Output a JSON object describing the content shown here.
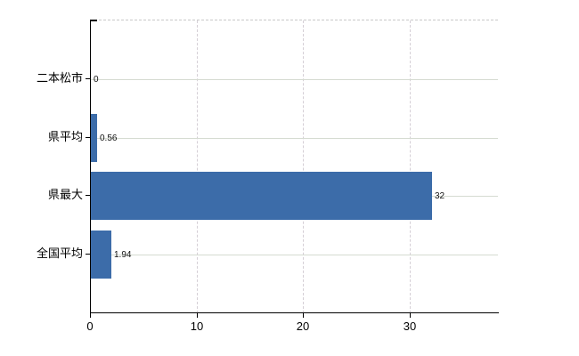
{
  "chart_data": {
    "type": "bar",
    "orientation": "horizontal",
    "title": "",
    "xlabel": "",
    "ylabel": "",
    "categories": [
      "二本松市",
      "県平均",
      "県最大",
      "全国平均"
    ],
    "values": [
      0,
      0.56,
      32,
      1.94
    ],
    "value_labels": [
      "0",
      "0.56",
      "32",
      "1.94"
    ],
    "x_ticks": [
      0,
      10,
      20,
      30
    ],
    "x_tick_labels": [
      "0",
      "10",
      "20",
      "30"
    ],
    "xlim": [
      0,
      38.3
    ],
    "grid": true,
    "legend": false,
    "bar_color": "#3c6ca9",
    "hgrid_color": "#d5dbd1",
    "vgrid_color": "#d5cfd6",
    "axis_color": "#000000",
    "label_color": "#000000",
    "background": "#ffffff"
  }
}
